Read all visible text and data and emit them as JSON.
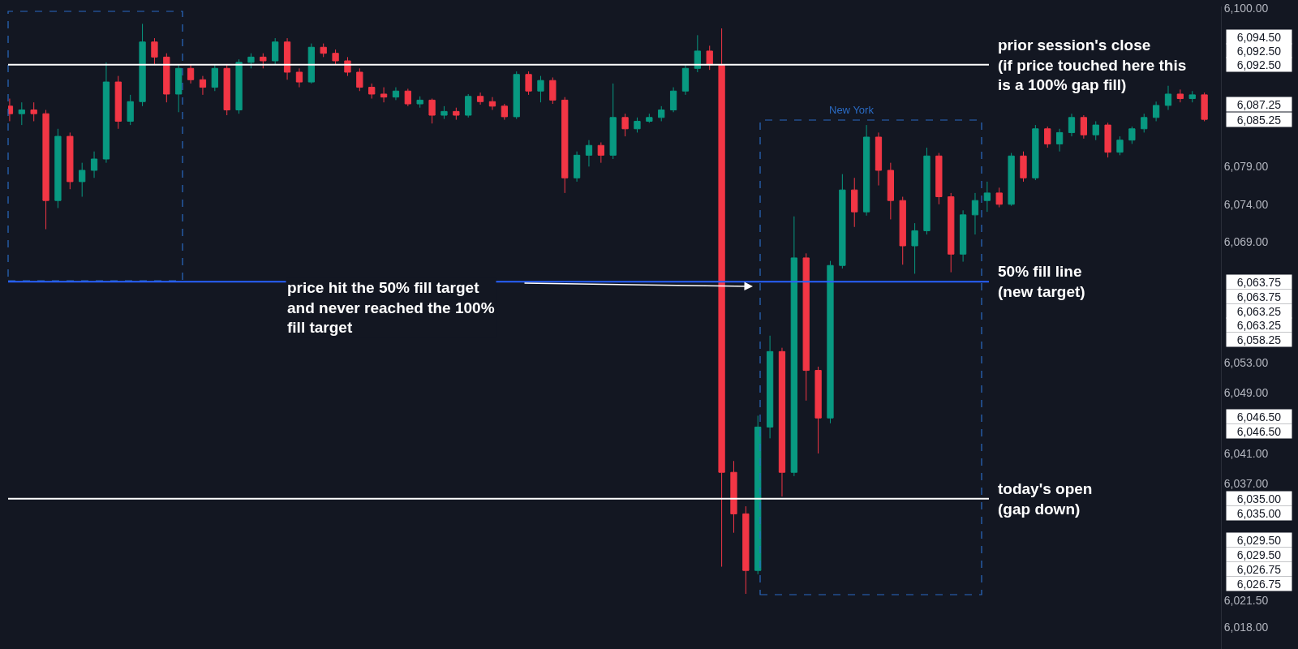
{
  "chart_data": {
    "type": "candlestick",
    "categories": [
      null,
      null,
      null,
      null,
      null,
      null,
      null,
      null,
      null,
      null,
      null,
      null,
      null,
      null,
      null,
      null,
      null,
      null,
      null,
      null,
      null,
      null,
      null,
      null,
      null,
      null,
      null,
      null,
      null,
      null,
      null,
      null,
      null,
      null,
      null,
      null,
      null,
      null,
      null,
      null,
      null,
      null,
      null,
      null,
      null,
      null,
      null,
      null,
      null,
      null,
      null,
      null,
      null,
      null,
      null,
      null,
      null,
      null,
      null,
      null,
      null,
      null,
      null,
      null,
      null,
      null,
      null,
      null,
      null,
      null,
      null,
      null,
      null,
      null,
      null,
      null,
      null,
      null,
      null,
      null,
      null,
      null,
      null,
      null,
      null,
      null,
      null,
      null,
      null,
      null,
      null,
      null,
      null,
      null,
      null,
      null,
      null,
      null,
      null,
      null
    ],
    "ohlc": [
      [
        6087,
        6088,
        6085,
        6086
      ],
      [
        6086,
        6087.5,
        6084.5,
        6086.5
      ],
      [
        6086.5,
        6087.5,
        6085,
        6086
      ],
      [
        6086,
        6086.5,
        6070.7,
        6074.5
      ],
      [
        6074.5,
        6084,
        6073.5,
        6083
      ],
      [
        6083,
        6083.5,
        6076,
        6077
      ],
      [
        6077,
        6079.5,
        6075,
        6078.5
      ],
      [
        6078.5,
        6081,
        6077.5,
        6080
      ],
      [
        6080,
        6092.8,
        6079.5,
        6090.2
      ],
      [
        6090.2,
        6091,
        6084,
        6085
      ],
      [
        6085,
        6088.5,
        6084.5,
        6087.6
      ],
      [
        6087.6,
        6097.9,
        6087,
        6095.5
      ],
      [
        6095.5,
        6096,
        6092.5,
        6093.5
      ],
      [
        6093.5,
        6094,
        6087.5,
        6088.6
      ],
      [
        6088.6,
        6092.5,
        6086.2,
        6092
      ],
      [
        6092,
        6092.5,
        6090,
        6090.5
      ],
      [
        6090.5,
        6091,
        6088.5,
        6089.5
      ],
      [
        6089.5,
        6092.5,
        6089,
        6092
      ],
      [
        6092,
        6092.5,
        6085.8,
        6086.5
      ],
      [
        6086.5,
        6093.2,
        6086,
        6092.8
      ],
      [
        6092.8,
        6094,
        6092,
        6093.5
      ],
      [
        6093.5,
        6094,
        6092,
        6093
      ],
      [
        6093,
        6096,
        6092.5,
        6095.5
      ],
      [
        6095.5,
        6096,
        6090.5,
        6091.5
      ],
      [
        6091.5,
        6092,
        6089.5,
        6090.2
      ],
      [
        6090.2,
        6095.3,
        6090,
        6094.8
      ],
      [
        6094.8,
        6095.3,
        6093.5,
        6094
      ],
      [
        6094,
        6094.5,
        6092.5,
        6093
      ],
      [
        6093,
        6093.5,
        6091,
        6091.5
      ],
      [
        6091.5,
        6092,
        6089,
        6089.5
      ],
      [
        6089.5,
        6090,
        6088,
        6088.6
      ],
      [
        6088.6,
        6089.5,
        6087.5,
        6088.2
      ],
      [
        6088.2,
        6089.5,
        6087.8,
        6089
      ],
      [
        6089,
        6089.3,
        6087,
        6087.3
      ],
      [
        6087.3,
        6088.3,
        6086.8,
        6087.8
      ],
      [
        6087.8,
        6088,
        6084.7,
        6085.8
      ],
      [
        6085.8,
        6087,
        6085.3,
        6086.3
      ],
      [
        6086.3,
        6086.8,
        6085.2,
        6085.8
      ],
      [
        6085.8,
        6088.6,
        6085.5,
        6088.3
      ],
      [
        6088.3,
        6088.8,
        6087.2,
        6087.6
      ],
      [
        6087.6,
        6088.2,
        6086.5,
        6087
      ],
      [
        6087,
        6087.3,
        6085.2,
        6085.6
      ],
      [
        6085.6,
        6091.6,
        6085.3,
        6091.2
      ],
      [
        6091.2,
        6091.6,
        6088.5,
        6089
      ],
      [
        6089,
        6091,
        6087.5,
        6090.4
      ],
      [
        6090.4,
        6090.8,
        6087.3,
        6087.8
      ],
      [
        6087.8,
        6088.2,
        6075.5,
        6077.5
      ],
      [
        6077.5,
        6081,
        6077,
        6080.5
      ],
      [
        6080.5,
        6082.5,
        6079,
        6081.8
      ],
      [
        6081.8,
        6082.2,
        6079.5,
        6080.5
      ],
      [
        6080.5,
        6090,
        6080,
        6085.5
      ],
      [
        6085.5,
        6086,
        6083,
        6084
      ],
      [
        6084,
        6085.5,
        6083.5,
        6085
      ],
      [
        6085,
        6086,
        6084.8,
        6085.5
      ],
      [
        6085.5,
        6087,
        6085,
        6086.5
      ],
      [
        6086.5,
        6089.5,
        6086.2,
        6089
      ],
      [
        6089,
        6092.5,
        6088.5,
        6092
      ],
      [
        6092,
        6096.4,
        6091.5,
        6094.3
      ],
      [
        6094.3,
        6095,
        6091.8,
        6092.5
      ],
      [
        6092.5,
        6097.3,
        6026,
        6038.5
      ],
      [
        6038.5,
        6040,
        6030.5,
        6033
      ],
      [
        6033,
        6034,
        6022.4,
        6025.5
      ],
      [
        6025.5,
        6046,
        6025,
        6044.5
      ],
      [
        6044.5,
        6056.6,
        6043,
        6054.5
      ],
      [
        6054.5,
        6055,
        6035.3,
        6038.5
      ],
      [
        6038.5,
        6072.4,
        6038,
        6066.9
      ],
      [
        6066.9,
        6067.5,
        6048,
        6052
      ],
      [
        6052,
        6052.5,
        6041,
        6045.7
      ],
      [
        6045.7,
        6066.5,
        6045,
        6065.9
      ],
      [
        6065.9,
        6078,
        6065.5,
        6075.9
      ],
      [
        6075.9,
        6077.5,
        6071,
        6073
      ],
      [
        6073,
        6084.5,
        6072.5,
        6082.9
      ],
      [
        6082.9,
        6083.5,
        6076.5,
        6078.5
      ],
      [
        6078.5,
        6079.5,
        6072,
        6074.5
      ],
      [
        6074.5,
        6075,
        6066,
        6068.5
      ],
      [
        6068.5,
        6071.5,
        6064.8,
        6070.5
      ],
      [
        6070.5,
        6081.5,
        6070,
        6080.4
      ],
      [
        6080.4,
        6080.8,
        6074,
        6075
      ],
      [
        6075,
        6075.5,
        6065,
        6067.4
      ],
      [
        6067.4,
        6073.2,
        6066.4,
        6072.6
      ],
      [
        6072.6,
        6075.5,
        6070,
        6074.5
      ],
      [
        6074.5,
        6077,
        6073,
        6075.5
      ],
      [
        6075.5,
        6076.2,
        6073.6,
        6074
      ],
      [
        6074,
        6080.8,
        6073.8,
        6080.4
      ],
      [
        6080.4,
        6081,
        6077,
        6077.5
      ],
      [
        6077.5,
        6084.5,
        6077.2,
        6084
      ],
      [
        6084,
        6084.3,
        6081.5,
        6082
      ],
      [
        6082,
        6084,
        6081,
        6083.5
      ],
      [
        6083.5,
        6086,
        6083,
        6085.5
      ],
      [
        6085.5,
        6085.8,
        6082.7,
        6083.2
      ],
      [
        6083.2,
        6085,
        6082.5,
        6084.5
      ],
      [
        6084.5,
        6084.8,
        6080.2,
        6080.9
      ],
      [
        6080.9,
        6083,
        6080.5,
        6082.5
      ],
      [
        6082.5,
        6084.3,
        6082,
        6084
      ],
      [
        6084,
        6086,
        6083.5,
        6085.5
      ],
      [
        6085.5,
        6087.6,
        6085,
        6087.1
      ],
      [
        6087.1,
        6089.7,
        6086.5,
        6088.6
      ],
      [
        6088.6,
        6089.2,
        6087.5,
        6088
      ],
      [
        6088,
        6089,
        6087.5,
        6088.5
      ],
      [
        6088.5,
        6088.8,
        6085,
        6085.25
      ]
    ],
    "ylim": [
      6015.1,
      6100.2
    ],
    "yticks": [
      {
        "value": 6100,
        "label": "6,100.00"
      },
      {
        "value": 6079,
        "label": "6,079.00"
      },
      {
        "value": 6074,
        "label": "6,074.00"
      },
      {
        "value": 6069,
        "label": "6,069.00"
      },
      {
        "value": 6053,
        "label": "6,053.00"
      },
      {
        "value": 6049,
        "label": "6,049.00"
      },
      {
        "value": 6041,
        "label": "6,041.00"
      },
      {
        "value": 6037,
        "label": "6,037.00"
      },
      {
        "value": 6021.5,
        "label": "6,021.50"
      },
      {
        "value": 6018,
        "label": "6,018.00"
      }
    ],
    "tick_labels": "y",
    "ref_lines": [
      {
        "axis": "y",
        "value": 6092.5,
        "label": "prior session's close\n(if price touched here this\nis a 100% gap fill)",
        "color": "#ffffff"
      },
      {
        "axis": "y",
        "value": 6063.75,
        "label": "50% fill line\n(new target)",
        "color": "#2962ff"
      },
      {
        "axis": "y",
        "value": 6035,
        "label": "today's open\n(gap down)",
        "color": "#ffffff"
      }
    ],
    "annotations": [
      "price hit the 50% fill target\nand never reached the 100%\nfill target",
      "New York",
      "6,094.50",
      "6,092.50",
      "6,092.50",
      "6,087.25",
      "6,085.25",
      "6,063.75",
      "6,063.75",
      "6,063.25",
      "6,063.25",
      "6,058.25",
      "6,046.50",
      "6,046.50",
      "6,035.00",
      "6,035.00",
      "6,029.50",
      "6,029.50",
      "6,026.75",
      "6,026.75"
    ]
  }
}
